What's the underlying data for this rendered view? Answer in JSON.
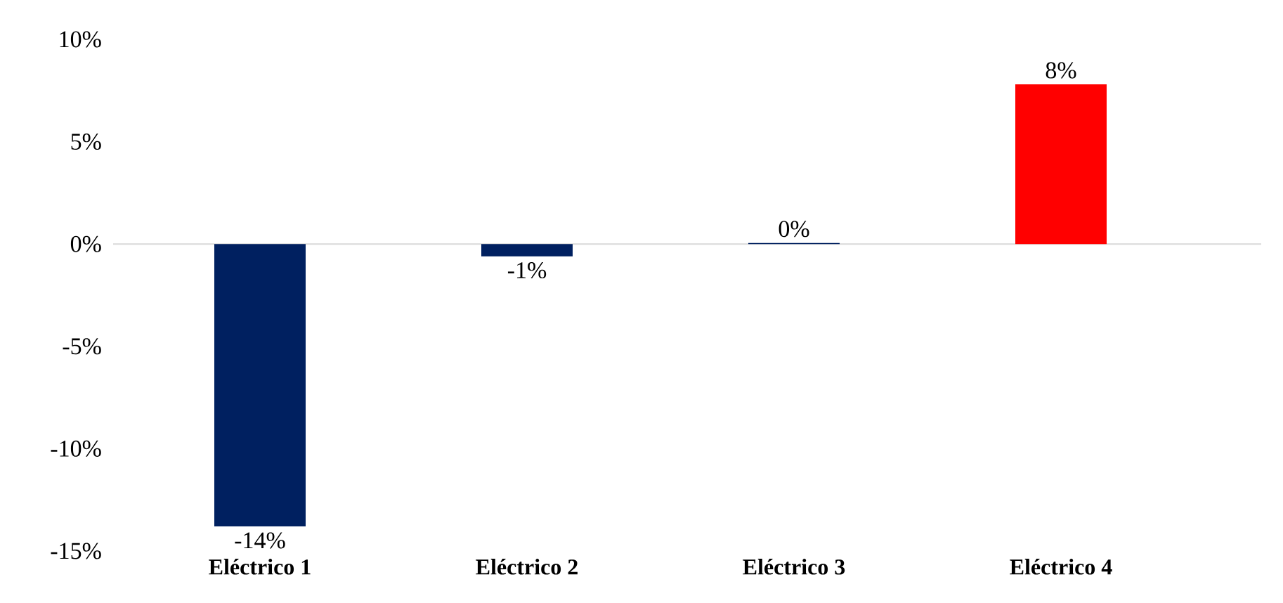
{
  "chart_data": {
    "type": "bar",
    "categories": [
      "Eléctrico 1",
      "Eléctrico 2",
      "Eléctrico 3",
      "Eléctrico 4"
    ],
    "values": [
      -13.8,
      -0.6,
      0.05,
      7.8
    ],
    "colors": [
      "#002060",
      "#002060",
      "#002060",
      "#ff0000"
    ],
    "value_labels": [
      "-14%",
      "-1%",
      "0%",
      "8%"
    ],
    "ylim": [
      -15,
      10
    ],
    "yticks": [
      {
        "value": -15,
        "label": "-15%"
      },
      {
        "value": -10,
        "label": "-10%"
      },
      {
        "value": -5,
        "label": "-5%"
      },
      {
        "value": 0,
        "label": "0%"
      },
      {
        "value": 5,
        "label": "5%"
      },
      {
        "value": 10,
        "label": "10%"
      }
    ]
  }
}
